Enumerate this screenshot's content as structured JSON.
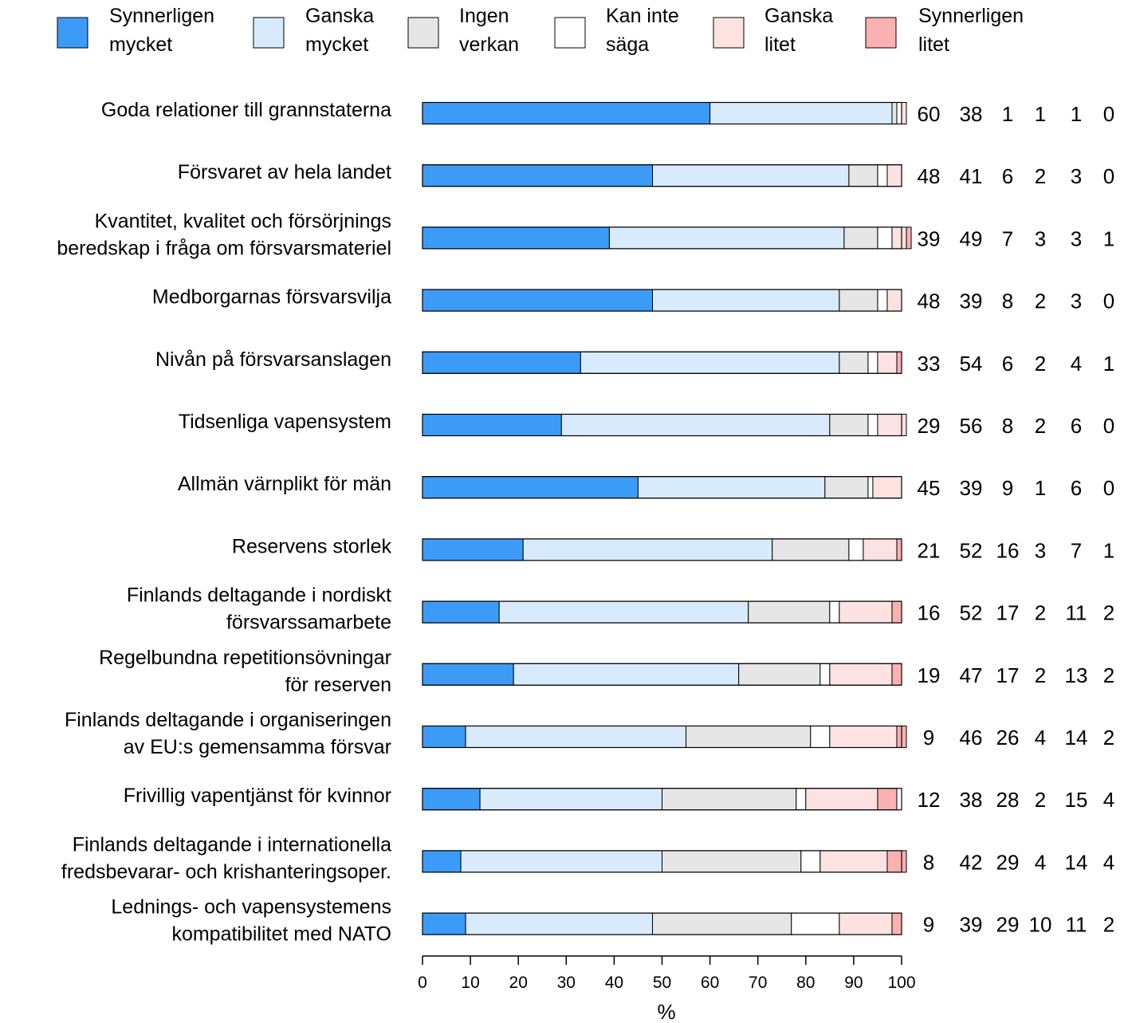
{
  "chart_data": {
    "type": "bar",
    "orientation": "horizontal",
    "stacked": true,
    "xlabel": "%",
    "xlim": [
      0,
      100
    ],
    "xticks": [
      "0",
      "10",
      "20",
      "30",
      "40",
      "50",
      "60",
      "70",
      "80",
      "90",
      "100"
    ],
    "grid": false,
    "legend_position": "top",
    "categories": [
      [
        "Goda relationer till grannstaterna"
      ],
      [
        "Försvaret av hela landet"
      ],
      [
        "Kvantitet, kvalitet och försörjnings",
        "beredskap i fråga om försvarsmateriel"
      ],
      [
        "Medborgarnas försvarsvilja"
      ],
      [
        "Nivån på försvarsanslagen"
      ],
      [
        "Tidsenliga vapensystem"
      ],
      [
        "Allmän värnplikt för män"
      ],
      [
        "Reservens storlek"
      ],
      [
        "Finlands deltagande i nordiskt",
        "försvarssamarbete"
      ],
      [
        "Regelbundna repetitionsövningar",
        "för reserven"
      ],
      [
        "Finlands deltagande i organiseringen",
        "av EU:s gemensamma försvar"
      ],
      [
        "Frivillig vapentjänst för kvinnor"
      ],
      [
        "Finlands deltagande i internationella",
        "fredsbevarar- och krishanteringsoper."
      ],
      [
        "Lednings- och vapensystemens",
        "kompatibilitet med NATO"
      ]
    ],
    "series": [
      {
        "name": [
          "Synnerligen",
          "mycket"
        ],
        "color": "#3d9bf8",
        "values": [
          60,
          48,
          39,
          48,
          33,
          29,
          45,
          21,
          16,
          19,
          9,
          12,
          8,
          9
        ]
      },
      {
        "name": [
          "Ganska",
          "mycket"
        ],
        "color": "#d8ebfd",
        "values": [
          38,
          41,
          49,
          39,
          54,
          56,
          39,
          52,
          52,
          47,
          46,
          38,
          42,
          39
        ]
      },
      {
        "name": [
          "Ingen",
          "verkan"
        ],
        "color": "#e6e6e6",
        "values": [
          1,
          6,
          7,
          8,
          6,
          8,
          9,
          16,
          17,
          17,
          26,
          28,
          29,
          29
        ]
      },
      {
        "name": [
          "Kan inte",
          "säga"
        ],
        "color": "#ffffff",
        "values": [
          1,
          2,
          3,
          2,
          2,
          2,
          1,
          3,
          2,
          2,
          4,
          2,
          4,
          10
        ]
      },
      {
        "name": [
          "Ganska",
          "litet"
        ],
        "color": "#fde2e2",
        "values": [
          1,
          3,
          3,
          3,
          4,
          6,
          6,
          7,
          11,
          13,
          14,
          15,
          14,
          11
        ]
      },
      {
        "name": [
          "Synnerligen",
          "litet"
        ],
        "color": "#fcb1b1",
        "values": [
          0,
          0,
          1,
          0,
          1,
          0,
          0,
          1,
          2,
          2,
          2,
          4,
          4,
          2
        ]
      }
    ]
  }
}
